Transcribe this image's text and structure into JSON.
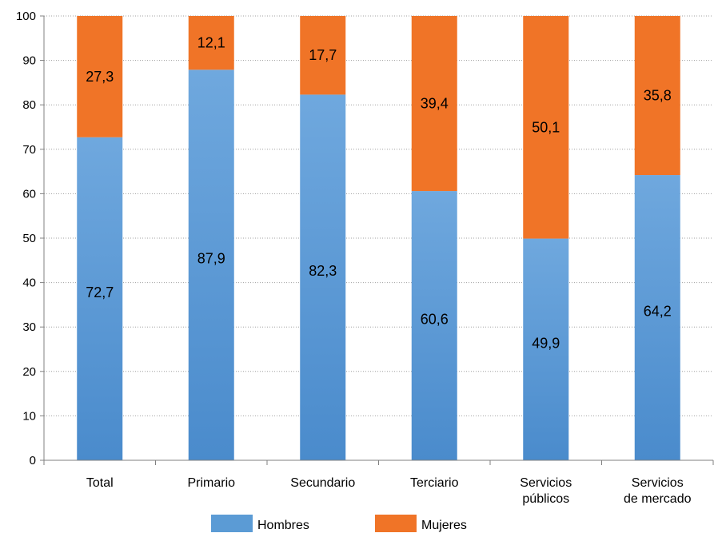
{
  "chart_data": {
    "type": "bar",
    "stacked": true,
    "categories": [
      [
        "Total"
      ],
      [
        "Primario"
      ],
      [
        "Secundario"
      ],
      [
        "Terciario"
      ],
      [
        "Servicios",
        "públicos"
      ],
      [
        "Servicios",
        "de mercado"
      ]
    ],
    "series": [
      {
        "name": "Hombres",
        "values": [
          72.7,
          87.9,
          82.3,
          60.6,
          49.9,
          64.2
        ],
        "labels": [
          "72,7",
          "87,9",
          "82,3",
          "60,6",
          "49,9",
          "64,2"
        ]
      },
      {
        "name": "Mujeres",
        "values": [
          27.3,
          12.1,
          17.7,
          39.4,
          50.1,
          35.8
        ],
        "labels": [
          "27,3",
          "12,1",
          "17,7",
          "39,4",
          "50,1",
          "35,8"
        ]
      }
    ],
    "ylim": [
      0,
      100
    ],
    "yticks": [
      0,
      10,
      20,
      30,
      40,
      50,
      60,
      70,
      80,
      90,
      100
    ],
    "grid": true,
    "legend_position": "bottom",
    "colors": {
      "Hombres": "#5b9bd5",
      "Mujeres": "#f07427",
      "grid": "#a0a0a0"
    }
  }
}
